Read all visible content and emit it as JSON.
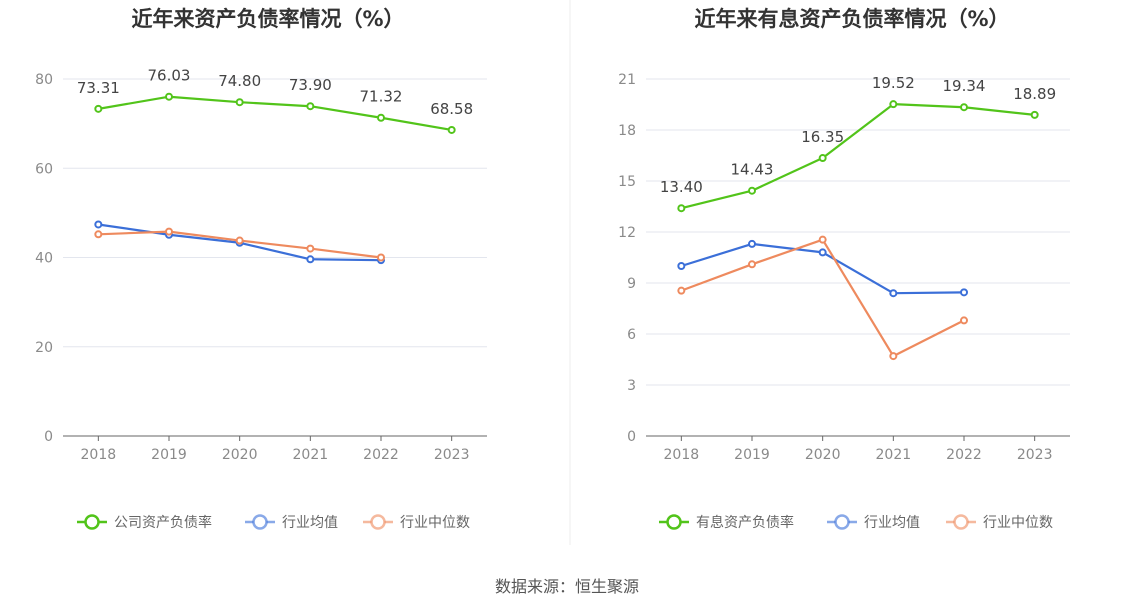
{
  "source": "数据来源：恒生聚源",
  "colors": {
    "company": "#52c41a",
    "avg": "#3b6fd8",
    "median": "#ee8a5e",
    "grid": "#e3e6ee",
    "axis": "#666666"
  },
  "chart_data": [
    {
      "type": "line",
      "title": "近年来资产负债率情况（%）",
      "x": [
        "2018",
        "2019",
        "2020",
        "2021",
        "2022",
        "2023"
      ],
      "ylim": [
        0,
        80
      ],
      "yticks": [
        "0",
        "20",
        "40",
        "60",
        "80"
      ],
      "grid": true,
      "legend": "bottom",
      "series": [
        {
          "name": "公司资产负债率",
          "color": "#52c41a",
          "labeled": true,
          "values": [
            73.31,
            76.03,
            74.8,
            73.9,
            71.32,
            68.58
          ],
          "labels": [
            "73.31",
            "76.03",
            "74.80",
            "73.90",
            "71.32",
            "68.58"
          ]
        },
        {
          "name": "行业均值",
          "color": "#3b6fd8",
          "labeled": false,
          "values": [
            47.4,
            45.1,
            43.3,
            39.6,
            39.4,
            null
          ]
        },
        {
          "name": "行业中位数",
          "color": "#ee8a5e",
          "labeled": false,
          "values": [
            45.2,
            45.8,
            43.8,
            42.0,
            40.0,
            null
          ]
        }
      ]
    },
    {
      "type": "line",
      "title": "近年来有息资产负债率情况（%）",
      "x": [
        "2018",
        "2019",
        "2020",
        "2021",
        "2022",
        "2023"
      ],
      "ylim": [
        0,
        21
      ],
      "yticks": [
        "0",
        "3",
        "6",
        "9",
        "12",
        "15",
        "18",
        "21"
      ],
      "grid": true,
      "legend": "bottom",
      "series": [
        {
          "name": "有息资产负债率",
          "color": "#52c41a",
          "labeled": true,
          "values": [
            13.4,
            14.43,
            16.35,
            19.52,
            19.34,
            18.89
          ],
          "labels": [
            "13.40",
            "14.43",
            "16.35",
            "19.52",
            "19.34",
            "18.89"
          ]
        },
        {
          "name": "行业均值",
          "color": "#3b6fd8",
          "labeled": false,
          "values": [
            10.0,
            11.3,
            10.8,
            8.4,
            8.45,
            null
          ]
        },
        {
          "name": "行业中位数",
          "color": "#ee8a5e",
          "labeled": false,
          "values": [
            8.55,
            10.1,
            11.55,
            4.7,
            6.8,
            null
          ]
        }
      ]
    }
  ]
}
